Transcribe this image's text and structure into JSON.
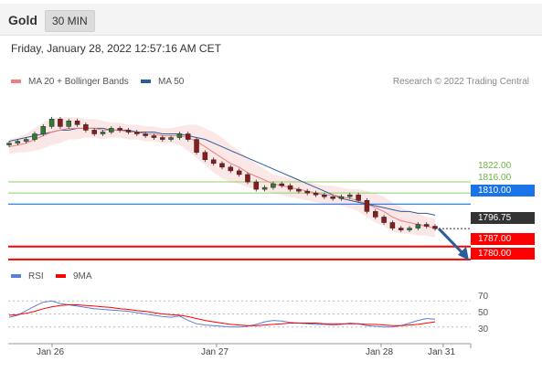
{
  "header": {
    "symbol": "Gold",
    "timeframe": "30 MIN",
    "datetime": "Friday, January 28, 2022 12:57:16 AM CET"
  },
  "legend": {
    "ma20_label": "MA 20 + Bollinger Bands",
    "ma50_label": "MA 50",
    "credit": "Research © 2022 Trading Central"
  },
  "colors": {
    "ma20": "#f08080",
    "ma50": "#2b5c9e",
    "support": "#ff0000",
    "pivot": "#1a73e8",
    "resistance": "#8fd16a",
    "rsi": "#5b7fd6",
    "rsi_ma": "#ff0000",
    "band_fill": "#fce4e4"
  },
  "levels": {
    "r2": "1822.00",
    "r1": "1816.00",
    "pivot": "1810.00",
    "last": "1796.75",
    "s1": "1787.00",
    "s2": "1780.00"
  },
  "rsi_legend": {
    "rsi_label": "RSI",
    "ma_label": "9MA"
  },
  "rsi_ticks": [
    "70",
    "50",
    "30"
  ],
  "x_ticks": [
    "Jan 26",
    "Jan 27",
    "Jan 28",
    "Jan 31"
  ],
  "chart_data": {
    "type": "candlestick",
    "x_ticks": [
      "Jan 26",
      "Jan 27",
      "Jan 28",
      "Jan 31"
    ],
    "price_series": [
      {
        "name": "MA 20 + Bollinger Bands"
      },
      {
        "name": "MA 50"
      }
    ],
    "close": [
      1843,
      1844,
      1845,
      1848,
      1852,
      1856,
      1852,
      1855,
      1853,
      1850,
      1848,
      1849,
      1851,
      1850,
      1849,
      1848,
      1847,
      1846,
      1845,
      1846,
      1848,
      1845,
      1838,
      1834,
      1832,
      1830,
      1828,
      1826,
      1822,
      1818,
      1819,
      1821,
      1820,
      1818,
      1817,
      1816,
      1815,
      1814,
      1813,
      1814,
      1815,
      1812,
      1806,
      1803,
      1800,
      1797,
      1796,
      1797,
      1799,
      1798,
      1796.75
    ],
    "ma20": [
      1841,
      1842,
      1843,
      1845,
      1847,
      1849,
      1850,
      1851,
      1851,
      1851,
      1851,
      1850,
      1850,
      1850,
      1849,
      1849,
      1848,
      1848,
      1847,
      1847,
      1847,
      1846,
      1844,
      1841,
      1838,
      1835,
      1832,
      1830,
      1827,
      1825,
      1823,
      1821,
      1820,
      1819,
      1818,
      1817,
      1816,
      1815,
      1815,
      1814,
      1813,
      1812,
      1810,
      1808,
      1806,
      1803,
      1801,
      1800,
      1799,
      1798,
      1797
    ],
    "ma50": [
      1844,
      1845,
      1846,
      1847,
      1848,
      1849,
      1850,
      1850,
      1851,
      1851,
      1851,
      1851,
      1850,
      1850,
      1850,
      1849,
      1849,
      1849,
      1848,
      1848,
      1848,
      1847,
      1846,
      1845,
      1843,
      1841,
      1839,
      1837,
      1835,
      1833,
      1831,
      1829,
      1827,
      1825,
      1823,
      1821,
      1819,
      1817,
      1815,
      1813,
      1812,
      1811,
      1810,
      1809,
      1808,
      1807,
      1806,
      1806,
      1805,
      1805,
      1804
    ],
    "bollinger_width": [
      4,
      4,
      5,
      6,
      7,
      7,
      7,
      6,
      6,
      5,
      5,
      5,
      4,
      4,
      4,
      4,
      4,
      4,
      4,
      4,
      5,
      7,
      9,
      10,
      11,
      11,
      10,
      9,
      8,
      7,
      6,
      5,
      5,
      5,
      5,
      5,
      5,
      5,
      5,
      5,
      5,
      6,
      7,
      8,
      8,
      8,
      7,
      6,
      6,
      5,
      5
    ],
    "horizontal_levels": [
      {
        "label": "1822.00",
        "value": 1822.0,
        "kind": "resistance"
      },
      {
        "label": "1816.00",
        "value": 1816.0,
        "kind": "resistance"
      },
      {
        "label": "1810.00",
        "value": 1810.0,
        "kind": "pivot"
      },
      {
        "label": "1796.75",
        "value": 1796.75,
        "kind": "last"
      },
      {
        "label": "1787.00",
        "value": 1787.0,
        "kind": "support"
      },
      {
        "label": "1780.00",
        "value": 1780.0,
        "kind": "support"
      }
    ],
    "forecast_arrow": {
      "from": 1796.75,
      "to": 1780.0
    },
    "rsi": {
      "series": [
        {
          "name": "RSI",
          "values": [
            45,
            48,
            55,
            62,
            68,
            70,
            66,
            64,
            62,
            60,
            58,
            57,
            56,
            55,
            54,
            52,
            50,
            48,
            46,
            45,
            47,
            40,
            35,
            33,
            32,
            31,
            30,
            30,
            31,
            34,
            38,
            40,
            39,
            37,
            36,
            35,
            34,
            34,
            33,
            34,
            36,
            35,
            32,
            31,
            30,
            30,
            32,
            36,
            40,
            43,
            42
          ]
        },
        {
          "name": "9MA",
          "values": [
            48,
            49,
            51,
            54,
            58,
            61,
            63,
            64,
            64,
            63,
            62,
            61,
            60,
            58,
            57,
            55,
            54,
            52,
            50,
            49,
            48,
            46,
            43,
            40,
            38,
            36,
            34,
            33,
            32,
            32,
            33,
            34,
            35,
            36,
            36,
            36,
            36,
            35,
            35,
            35,
            35,
            35,
            34,
            34,
            33,
            32,
            32,
            33,
            34,
            36,
            38
          ]
        }
      ],
      "ylim": [
        10,
        90
      ],
      "ticks": [
        70,
        50,
        30
      ]
    },
    "ylim": [
      1777,
      1870
    ]
  }
}
